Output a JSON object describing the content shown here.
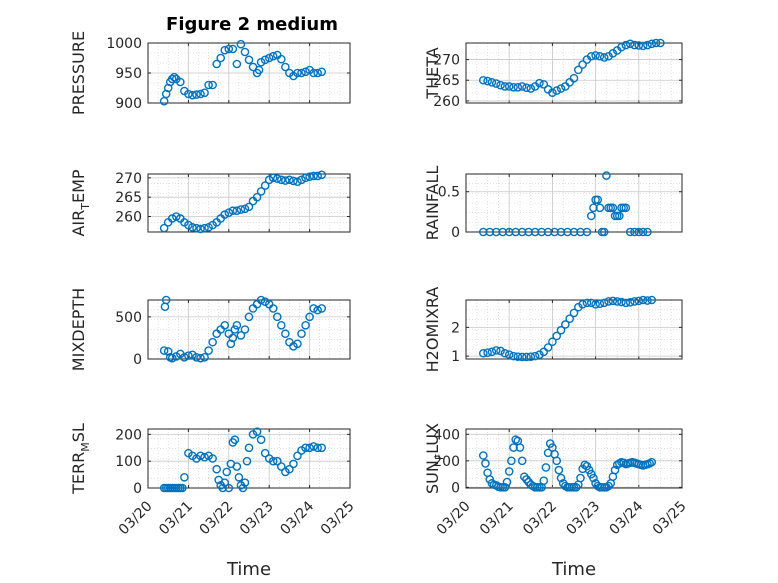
{
  "figure": {
    "title": "Figure 2 medium",
    "marker_color": "#0072BD",
    "axis_color": "#262626",
    "grid_color": "#cfcfcf"
  },
  "chart_data": [
    {
      "type": "scatter",
      "ylabel": "PRESSURE",
      "ylim": [
        900,
        1000
      ],
      "yticks": [
        900,
        950,
        1000
      ],
      "ytick_labels": [
        "900",
        "950",
        "1000"
      ],
      "xticks": [
        "03/20",
        "03/21",
        "03/22",
        "03/23",
        "03/24",
        "03/25"
      ],
      "xlim": [
        0,
        5
      ],
      "show_xtick_labels": false,
      "grid": true,
      "x": [
        0.4,
        0.45,
        0.5,
        0.55,
        0.6,
        0.65,
        0.7,
        0.8,
        0.9,
        1.0,
        1.1,
        1.2,
        1.3,
        1.4,
        1.5,
        1.6,
        1.7,
        1.8,
        1.9,
        2.0,
        2.1,
        2.2,
        2.3,
        2.4,
        2.5,
        2.6,
        2.7,
        2.75,
        2.8,
        2.9,
        3.0,
        3.1,
        3.2,
        3.3,
        3.4,
        3.5,
        3.6,
        3.7,
        3.8,
        3.9,
        4.0,
        4.1,
        4.2,
        4.3
      ],
      "y": [
        903,
        915,
        925,
        935,
        940,
        943,
        940,
        935,
        920,
        915,
        913,
        914,
        915,
        917,
        930,
        930,
        965,
        975,
        988,
        990,
        990,
        965,
        998,
        985,
        972,
        960,
        950,
        955,
        968,
        972,
        975,
        978,
        980,
        973,
        960,
        950,
        945,
        950,
        950,
        952,
        955,
        950,
        950,
        952
      ]
    },
    {
      "type": "scatter",
      "ylabel": "THETA",
      "ylim": [
        259.5,
        274
      ],
      "yticks": [
        260,
        265,
        270
      ],
      "ytick_labels": [
        "260",
        "265",
        "270"
      ],
      "xticks": [
        "03/20",
        "03/21",
        "03/22",
        "03/23",
        "03/24",
        "03/25"
      ],
      "xlim": [
        0,
        5
      ],
      "show_xtick_labels": false,
      "grid": true,
      "x": [
        0.4,
        0.5,
        0.6,
        0.7,
        0.8,
        0.9,
        1.0,
        1.1,
        1.2,
        1.3,
        1.4,
        1.5,
        1.6,
        1.7,
        1.8,
        1.9,
        2.0,
        2.1,
        2.2,
        2.3,
        2.4,
        2.5,
        2.6,
        2.7,
        2.8,
        2.9,
        3.0,
        3.1,
        3.2,
        3.3,
        3.4,
        3.5,
        3.6,
        3.7,
        3.8,
        3.9,
        4.0,
        4.1,
        4.2,
        4.3,
        4.4,
        4.5
      ],
      "y": [
        265,
        264.8,
        264.5,
        264.2,
        263.8,
        263.5,
        263.5,
        263.3,
        263.3,
        263.5,
        263.2,
        263,
        263.5,
        264.3,
        264,
        262.8,
        262,
        262.5,
        263,
        263.5,
        264.5,
        265.5,
        267.5,
        268.8,
        270,
        270.8,
        271,
        270.8,
        270.5,
        270.8,
        271.5,
        272.2,
        273,
        273.5,
        273.8,
        273.5,
        273.4,
        273.3,
        273.5,
        273.8,
        274.2,
        274.5
      ]
    },
    {
      "type": "scatter",
      "ylabel": "AIR_TEMP",
      "ylabel_main": "AIR",
      "ylabel_sub": "T",
      "ylabel_rest": "EMP",
      "ylim": [
        256,
        271
      ],
      "yticks": [
        260,
        265,
        270
      ],
      "ytick_labels": [
        "260",
        "265",
        "270"
      ],
      "xticks": [
        "03/20",
        "03/21",
        "03/22",
        "03/23",
        "03/24",
        "03/25"
      ],
      "xlim": [
        0,
        5
      ],
      "show_xtick_labels": false,
      "grid": true,
      "x": [
        0.4,
        0.5,
        0.6,
        0.7,
        0.8,
        0.9,
        1.0,
        1.1,
        1.2,
        1.3,
        1.4,
        1.5,
        1.6,
        1.7,
        1.8,
        1.9,
        2.0,
        2.1,
        2.2,
        2.3,
        2.4,
        2.5,
        2.6,
        2.7,
        2.8,
        2.9,
        3.0,
        3.1,
        3.2,
        3.3,
        3.4,
        3.5,
        3.6,
        3.7,
        3.8,
        3.9,
        4.0,
        4.1,
        4.2,
        4.3
      ],
      "y": [
        257,
        258.5,
        259.5,
        260,
        259.5,
        258.5,
        257.8,
        257.2,
        257,
        256.8,
        257,
        257.2,
        257.8,
        258.5,
        259.5,
        260.5,
        261,
        261.5,
        261.5,
        261.8,
        262,
        262.5,
        264,
        265,
        266.5,
        268,
        269.5,
        270,
        269.8,
        269.5,
        269.3,
        269.5,
        269.2,
        269,
        269.5,
        270,
        270.3,
        270.5,
        270.5,
        270.8
      ]
    },
    {
      "type": "scatter",
      "ylabel": "RAINFALL",
      "ylim": [
        0,
        0.72
      ],
      "yticks": [
        0,
        0.5
      ],
      "ytick_labels": [
        "0",
        "0.5"
      ],
      "xticks": [
        "03/20",
        "03/21",
        "03/22",
        "03/23",
        "03/24",
        "03/25"
      ],
      "xlim": [
        0,
        5
      ],
      "show_xtick_labels": false,
      "grid": true,
      "x": [
        0.4,
        0.55,
        0.7,
        0.85,
        1.0,
        1.15,
        1.3,
        1.45,
        1.6,
        1.75,
        1.9,
        2.05,
        2.2,
        2.35,
        2.5,
        2.65,
        2.8,
        2.9,
        2.95,
        3.0,
        3.05,
        3.1,
        3.15,
        3.2,
        3.25,
        3.3,
        3.35,
        3.4,
        3.45,
        3.5,
        3.55,
        3.6,
        3.65,
        3.7,
        3.8,
        3.9,
        4.0,
        4.1,
        4.2
      ],
      "y": [
        0,
        0,
        0,
        0,
        0,
        0,
        0,
        0,
        0,
        0,
        0,
        0,
        0,
        0,
        0,
        0,
        0,
        0.2,
        0.3,
        0.4,
        0.4,
        0.3,
        0.0,
        0.0,
        0.7,
        0.3,
        0.3,
        0.3,
        0.2,
        0.2,
        0.2,
        0.3,
        0.3,
        0.3,
        0,
        0,
        0,
        0,
        0
      ]
    },
    {
      "type": "scatter",
      "ylabel": "MIXDEPTH",
      "ylim": [
        0,
        700
      ],
      "yticks": [
        0,
        500
      ],
      "ytick_labels": [
        "0",
        "500"
      ],
      "xticks": [
        "03/20",
        "03/21",
        "03/22",
        "03/23",
        "03/24",
        "03/25"
      ],
      "xlim": [
        0,
        5
      ],
      "show_xtick_labels": false,
      "grid": true,
      "x": [
        0.4,
        0.42,
        0.45,
        0.5,
        0.55,
        0.6,
        0.7,
        0.8,
        0.9,
        1.0,
        1.1,
        1.2,
        1.3,
        1.4,
        1.5,
        1.6,
        1.7,
        1.8,
        1.9,
        2.0,
        2.05,
        2.1,
        2.15,
        2.2,
        2.3,
        2.4,
        2.5,
        2.6,
        2.7,
        2.8,
        2.9,
        3.0,
        3.1,
        3.2,
        3.3,
        3.4,
        3.5,
        3.6,
        3.7,
        3.8,
        3.9,
        4.0,
        4.1,
        4.2,
        4.3
      ],
      "y": [
        100,
        620,
        700,
        90,
        20,
        10,
        30,
        60,
        20,
        40,
        50,
        20,
        10,
        20,
        100,
        200,
        300,
        350,
        400,
        300,
        180,
        250,
        350,
        400,
        280,
        350,
        500,
        600,
        650,
        700,
        680,
        650,
        600,
        500,
        400,
        300,
        200,
        150,
        180,
        300,
        400,
        500,
        600,
        580,
        600
      ]
    },
    {
      "type": "scatter",
      "ylabel": "H2OMIXRA",
      "ylim": [
        0.9,
        2.95
      ],
      "yticks": [
        1,
        2
      ],
      "ytick_labels": [
        "1",
        "2"
      ],
      "xticks": [
        "03/20",
        "03/21",
        "03/22",
        "03/23",
        "03/24",
        "03/25"
      ],
      "xlim": [
        0,
        5
      ],
      "show_xtick_labels": false,
      "grid": true,
      "x": [
        0.4,
        0.5,
        0.6,
        0.7,
        0.8,
        0.9,
        1.0,
        1.1,
        1.2,
        1.3,
        1.4,
        1.5,
        1.6,
        1.7,
        1.8,
        1.9,
        2.0,
        2.1,
        2.2,
        2.3,
        2.4,
        2.5,
        2.6,
        2.7,
        2.8,
        2.9,
        3.0,
        3.1,
        3.2,
        3.3,
        3.4,
        3.5,
        3.6,
        3.7,
        3.8,
        3.9,
        4.0,
        4.1,
        4.2,
        4.3
      ],
      "y": [
        1.1,
        1.12,
        1.15,
        1.2,
        1.18,
        1.1,
        1.05,
        1.0,
        0.98,
        0.97,
        0.97,
        0.98,
        1.0,
        1.05,
        1.15,
        1.3,
        1.5,
        1.7,
        1.9,
        2.1,
        2.3,
        2.5,
        2.7,
        2.8,
        2.85,
        2.85,
        2.8,
        2.82,
        2.85,
        2.9,
        2.92,
        2.9,
        2.88,
        2.85,
        2.87,
        2.9,
        2.92,
        2.95,
        2.93,
        2.95
      ]
    },
    {
      "type": "scatter",
      "ylabel": "TERR_MSL",
      "ylabel_main": "TERR",
      "ylabel_sub": "M",
      "ylabel_rest": "SL",
      "ylim": [
        0,
        220
      ],
      "yticks": [
        0,
        100,
        200
      ],
      "ytick_labels": [
        "0",
        "100",
        "200"
      ],
      "xticks": [
        "03/20",
        "03/21",
        "03/22",
        "03/23",
        "03/24",
        "03/25"
      ],
      "xticks_labels_bound_to": "xticks",
      "xlim": [
        0,
        5
      ],
      "show_xtick_labels": true,
      "grid": true,
      "xlabel": "Time",
      "x": [
        0.4,
        0.45,
        0.5,
        0.55,
        0.6,
        0.65,
        0.7,
        0.75,
        0.8,
        0.85,
        0.9,
        1.0,
        1.1,
        1.2,
        1.3,
        1.4,
        1.5,
        1.6,
        1.7,
        1.75,
        1.8,
        1.85,
        1.9,
        1.95,
        2.0,
        2.05,
        2.1,
        2.15,
        2.2,
        2.25,
        2.3,
        2.35,
        2.4,
        2.45,
        2.5,
        2.6,
        2.7,
        2.8,
        2.9,
        3.0,
        3.1,
        3.2,
        3.3,
        3.4,
        3.5,
        3.6,
        3.7,
        3.8,
        3.9,
        4.0,
        4.1,
        4.2,
        4.3
      ],
      "y": [
        0,
        0,
        0,
        0,
        0,
        0,
        0,
        0,
        0,
        0,
        40,
        130,
        120,
        110,
        120,
        115,
        120,
        110,
        70,
        30,
        10,
        0,
        20,
        60,
        0,
        90,
        170,
        180,
        80,
        40,
        10,
        0,
        20,
        100,
        150,
        200,
        210,
        180,
        130,
        110,
        100,
        100,
        80,
        60,
        70,
        90,
        120,
        140,
        150,
        150,
        155,
        150,
        150
      ]
    },
    {
      "type": "scatter",
      "ylabel": "SUN_FLUX",
      "ylabel_main": "SUN",
      "ylabel_sub": "F",
      "ylabel_rest": "LUX",
      "ylim": [
        -5,
        440
      ],
      "yticks": [
        0,
        200,
        400
      ],
      "ytick_labels": [
        "0",
        "200",
        "400"
      ],
      "xticks": [
        "03/20",
        "03/21",
        "03/22",
        "03/23",
        "03/24",
        "03/25"
      ],
      "xlim": [
        0,
        5
      ],
      "show_xtick_labels": true,
      "grid": true,
      "xlabel": "Time",
      "x": [
        0.4,
        0.45,
        0.5,
        0.55,
        0.6,
        0.65,
        0.7,
        0.75,
        0.8,
        0.85,
        0.9,
        0.95,
        1.0,
        1.05,
        1.1,
        1.15,
        1.2,
        1.25,
        1.3,
        1.35,
        1.4,
        1.45,
        1.5,
        1.55,
        1.6,
        1.65,
        1.7,
        1.75,
        1.8,
        1.85,
        1.9,
        1.95,
        2.0,
        2.05,
        2.1,
        2.15,
        2.2,
        2.25,
        2.3,
        2.35,
        2.4,
        2.45,
        2.5,
        2.55,
        2.6,
        2.65,
        2.7,
        2.75,
        2.8,
        2.85,
        2.9,
        2.95,
        3.0,
        3.05,
        3.1,
        3.15,
        3.2,
        3.25,
        3.3,
        3.35,
        3.4,
        3.45,
        3.5,
        3.55,
        3.6,
        3.65,
        3.7,
        3.75,
        3.8,
        3.85,
        3.9,
        3.95,
        4.0,
        4.05,
        4.1,
        4.15,
        4.2,
        4.25,
        4.3
      ],
      "y": [
        240,
        180,
        110,
        60,
        30,
        20,
        15,
        5,
        0,
        0,
        0,
        40,
        120,
        200,
        300,
        360,
        350,
        300,
        200,
        80,
        60,
        40,
        20,
        10,
        0,
        0,
        0,
        0,
        50,
        150,
        260,
        330,
        300,
        250,
        200,
        130,
        70,
        30,
        10,
        0,
        0,
        0,
        0,
        0,
        20,
        70,
        140,
        170,
        160,
        130,
        100,
        70,
        30,
        10,
        0,
        0,
        0,
        0,
        10,
        30,
        80,
        130,
        170,
        180,
        190,
        185,
        175,
        180,
        185,
        190,
        185,
        180,
        175,
        170,
        165,
        170,
        175,
        180,
        190
      ]
    }
  ]
}
